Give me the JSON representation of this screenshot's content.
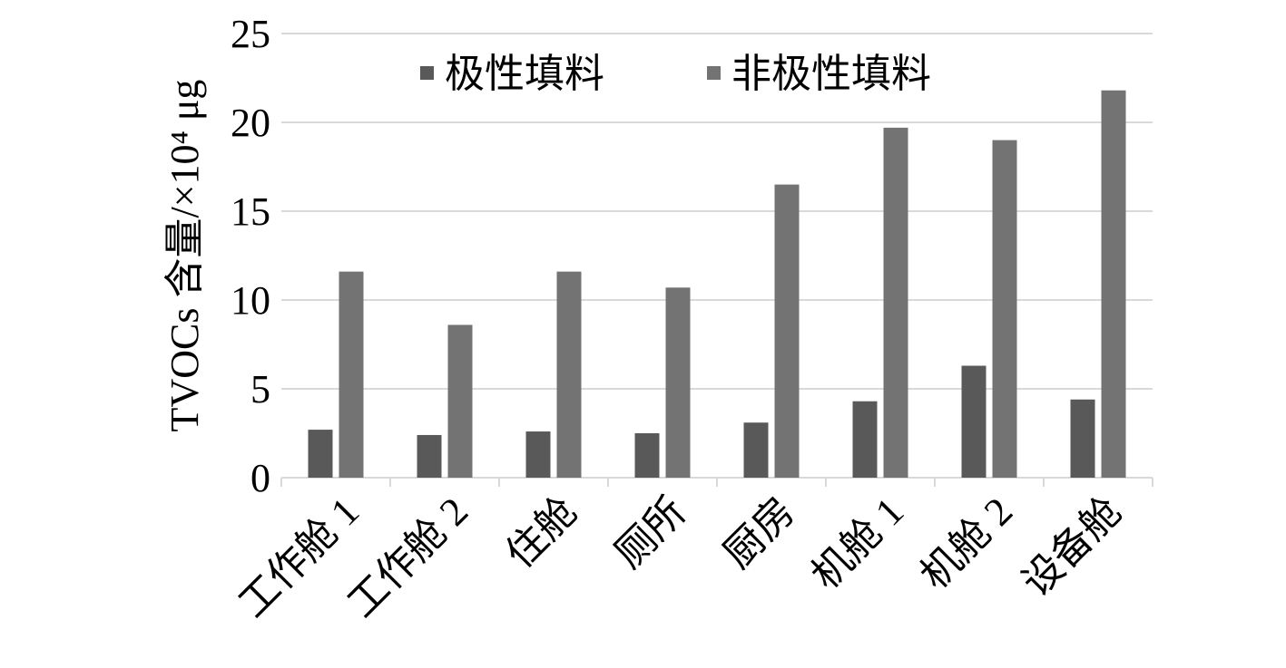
{
  "chart_data": {
    "type": "bar",
    "y_label": "TVOCs 含量/×10⁴ μg",
    "categories": [
      "工作舱 1",
      "工作舱 2",
      "住舱",
      "厕所",
      "厨房",
      "机舱 1",
      "机舱 2",
      "设备舱"
    ],
    "series": [
      {
        "name": "极性填料",
        "color": "#595959",
        "values": [
          2.7,
          2.4,
          2.6,
          2.5,
          3.1,
          4.3,
          6.3,
          4.4
        ]
      },
      {
        "name": "非极性填料",
        "color": "#737373",
        "values": [
          11.6,
          8.6,
          11.6,
          10.7,
          16.5,
          19.7,
          19.0,
          21.8
        ]
      }
    ],
    "ylim": [
      0,
      25
    ],
    "yticks": [
      0,
      5,
      10,
      15,
      20,
      25
    ],
    "grid": true,
    "legend": "top"
  }
}
